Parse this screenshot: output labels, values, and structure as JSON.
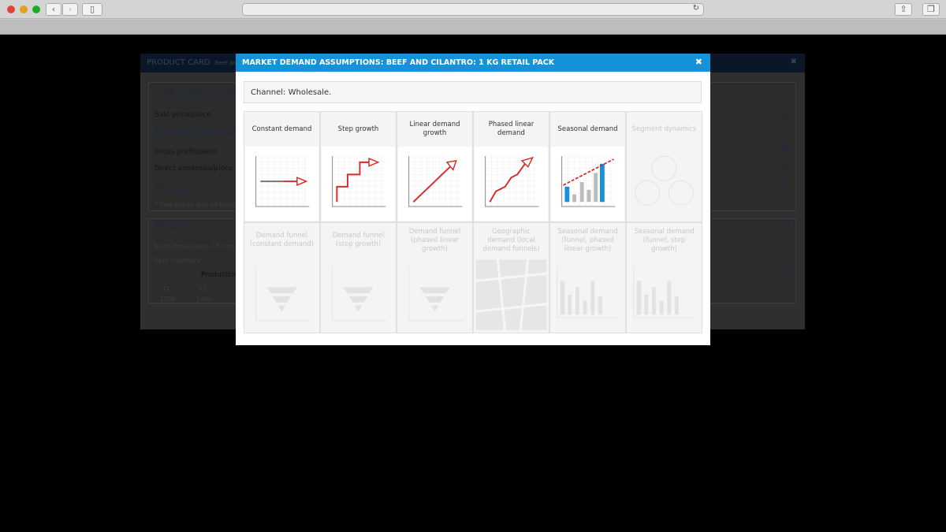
{
  "background_card": {
    "title": "PRODUCT CARD",
    "subtitle": "Beef and",
    "unit_section": "Unit economics: per p",
    "rows": [
      "Sale price/piece",
      "Estimated standard cost/",
      "Gross profit/piece",
      "Direct expenses/piece",
      "Profit/piece"
    ],
    "note": "* Sale prices and all input",
    "production": {
      "title": "Production",
      "touch_time": "Touch time/piece: 1.5 min",
      "days_inventory": "Days inventory",
      "table_title": "Production",
      "years": [
        "Y1",
        "Y2"
      ],
      "values": [
        "120k",
        "146k"
      ]
    }
  },
  "modal": {
    "title": "MARKET DEMAND ASSUMPTIONS: BEEF AND CILANTRO: 1 KG RETAIL PACK",
    "close_icon": "close-icon",
    "channel": "Channel: Wholesale.",
    "accent_color": "#1592d8",
    "options": [
      {
        "label": "Constant demand",
        "enabled": true,
        "icon": "constant"
      },
      {
        "label": "Step growth",
        "enabled": true,
        "icon": "step"
      },
      {
        "label": "Linear demand growth",
        "enabled": true,
        "icon": "linear"
      },
      {
        "label": "Phased linear demand",
        "enabled": true,
        "icon": "phased"
      },
      {
        "label": "Seasonal demand",
        "enabled": true,
        "icon": "seasonal"
      },
      {
        "label": "Segment dynamics",
        "enabled": false,
        "icon": "segments"
      },
      {
        "label": "Demand funnel (constant demand)",
        "enabled": false,
        "icon": "funnel"
      },
      {
        "label": "Demand funnel (step growth)",
        "enabled": false,
        "icon": "funnel-step"
      },
      {
        "label": "Demand funnel (phased linear growth)",
        "enabled": false,
        "icon": "funnel-phased"
      },
      {
        "label": "Geographic demand (local demand funnels)",
        "enabled": false,
        "icon": "map"
      },
      {
        "label": "Seasonal demand (funnel, phased linear growth)",
        "enabled": false,
        "icon": "seasonal-funnel"
      },
      {
        "label": "Seasonal demand (funnel, step growth)",
        "enabled": false,
        "icon": "seasonal-funnel-step"
      }
    ]
  }
}
